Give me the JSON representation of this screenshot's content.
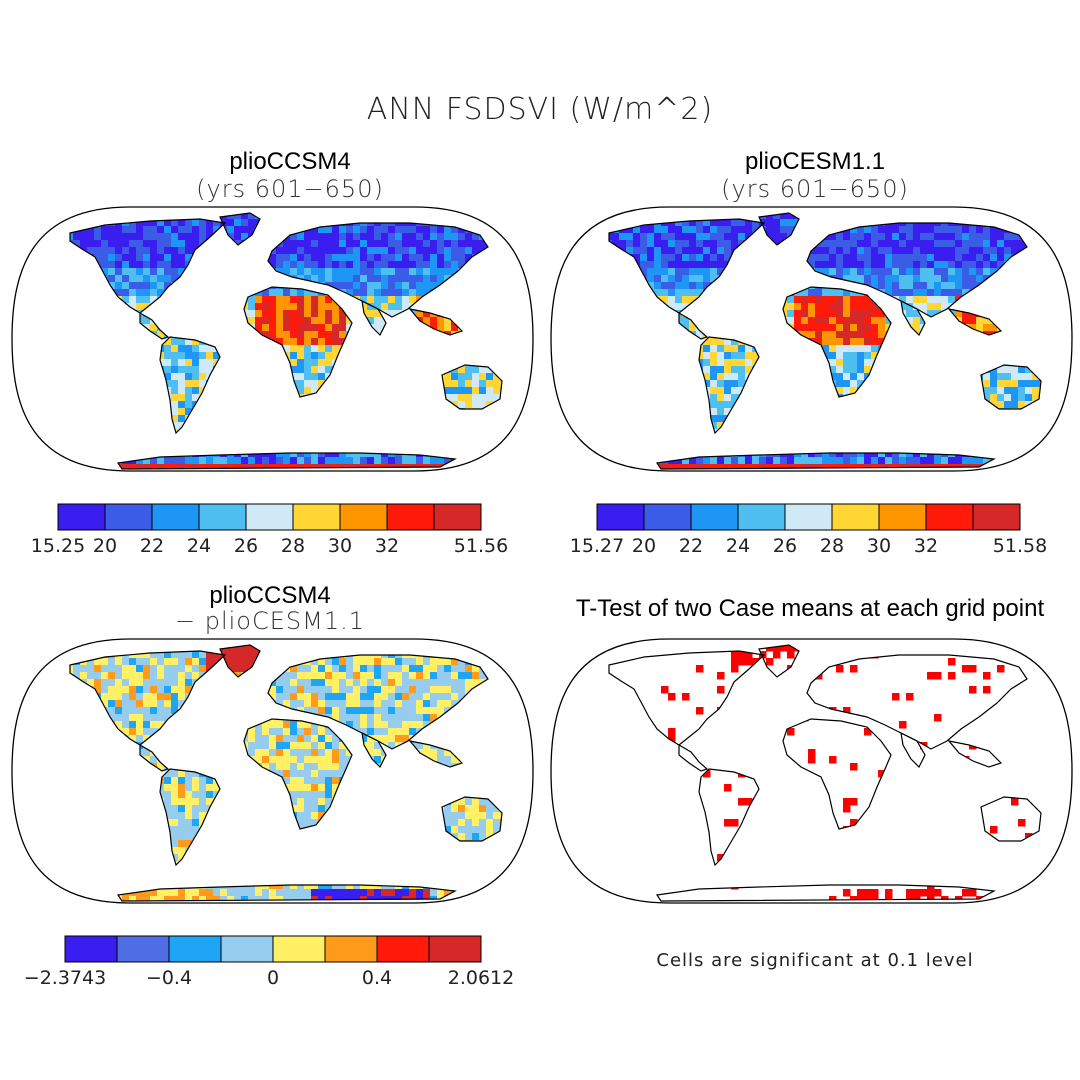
{
  "figure": {
    "title": "ANN FSDSVI (W/m^2)",
    "note": "Cells are significant at 0.1 level"
  },
  "panels": [
    {
      "id": "ccsm4",
      "title": "plioCCSM4",
      "subtitle": "(yrs 601−650)",
      "colorbar": {
        "colors": [
          "#3a1ef0",
          "#3a5ce6",
          "#1e96f5",
          "#4fbef0",
          "#cfe9f6",
          "#ffd633",
          "#ff9600",
          "#ff1a0a",
          "#d62828"
        ],
        "labels": [
          "15.25",
          "20",
          "22",
          "24",
          "26",
          "28",
          "30",
          "32",
          "51.56"
        ]
      }
    },
    {
      "id": "cesm11",
      "title": "plioCESM1.1",
      "subtitle": "(yrs 601−650)",
      "colorbar": {
        "colors": [
          "#3a1ef0",
          "#3a5ce6",
          "#1e96f5",
          "#4fbef0",
          "#cfe9f6",
          "#ffd633",
          "#ff9600",
          "#ff1a0a",
          "#d62828"
        ],
        "labels": [
          "15.27",
          "20",
          "22",
          "24",
          "26",
          "28",
          "30",
          "32",
          "51.58"
        ]
      }
    },
    {
      "id": "diff",
      "title": "plioCCSM4",
      "subtitle": "− plioCESM1.1",
      "colorbar": {
        "colors": [
          "#3a1ef0",
          "#4f6ee6",
          "#1ea5f5",
          "#96cdee",
          "#fff066",
          "#ff9a1a",
          "#ff1a0a",
          "#d62828"
        ],
        "labels": [
          "−2.3743",
          "−0.4",
          "0",
          "0.4",
          "2.0612"
        ],
        "label_boxes": [
          0,
          2,
          4,
          6,
          8
        ]
      }
    },
    {
      "id": "ttest",
      "title": "T-Test of two Case means at each grid point",
      "significance_color": "#ff0000"
    }
  ]
}
